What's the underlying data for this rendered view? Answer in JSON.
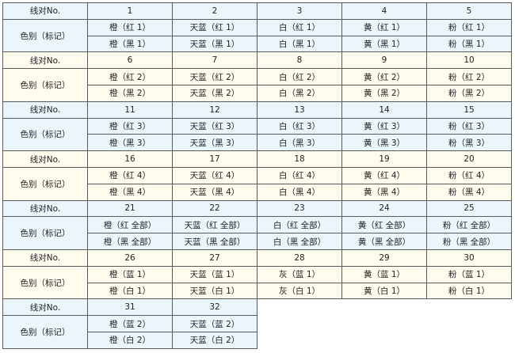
{
  "labels": {
    "pair_no": "线对No.",
    "color": "色别（标记）"
  },
  "colors": {
    "blue_bg": "#eaf5fd",
    "cream_bg": "#fefcec",
    "border": "#5a5a5a"
  },
  "groups": [
    {
      "nos": [
        "1",
        "2",
        "3",
        "4",
        "5"
      ],
      "row1": [
        "橙（红 1）",
        "天蓝（红 1）",
        "白（红 1）",
        "黄（红 1）",
        "粉（红 1）"
      ],
      "row2": [
        "橙（黑 1）",
        "天蓝（黑 1）",
        "白（黑 1）",
        "黄（黑 1）",
        "粉（黑 1）"
      ]
    },
    {
      "nos": [
        "6",
        "7",
        "8",
        "9",
        "10"
      ],
      "row1": [
        "橙（红 2）",
        "天蓝（红 2）",
        "白（红 2）",
        "黄（红 2）",
        "粉（红 2）"
      ],
      "row2": [
        "橙（黑 2）",
        "天蓝（黑 2）",
        "白（黑 2）",
        "黄（黑 2）",
        "粉（黑 2）"
      ]
    },
    {
      "nos": [
        "11",
        "12",
        "13",
        "14",
        "15"
      ],
      "row1": [
        "橙（红 3）",
        "天蓝（红 3）",
        "白（红 3）",
        "黄（红 3）",
        "粉（红 3）"
      ],
      "row2": [
        "橙（黑 3）",
        "天蓝（黑 3）",
        "白（黑 3）",
        "黄（黑 3）",
        "粉（黑 3）"
      ]
    },
    {
      "nos": [
        "16",
        "17",
        "18",
        "19",
        "20"
      ],
      "row1": [
        "橙（红 4）",
        "天蓝（红 4）",
        "白（红 4）",
        "黄（红 4）",
        "粉（红 4）"
      ],
      "row2": [
        "橙（黑 4）",
        "天蓝（黑 4）",
        "白（黑 4）",
        "黄（黑 4）",
        "粉（黑 4）"
      ]
    },
    {
      "nos": [
        "21",
        "22",
        "23",
        "24",
        "25"
      ],
      "row1": [
        "橙（红 全部）",
        "天蓝（红 全部）",
        "白（红 全部）",
        "黄（红 全部）",
        "粉（红 全部）"
      ],
      "row2": [
        "橙（黑 全部）",
        "天蓝（黑 全部）",
        "白（黑 全部）",
        "黄（黑 全部）",
        "粉（黑 全部）"
      ]
    },
    {
      "nos": [
        "26",
        "27",
        "28",
        "29",
        "30"
      ],
      "row1": [
        "橙（蓝 1）",
        "天蓝（蓝 1）",
        "灰（蓝 1）",
        "黄（蓝 1）",
        "粉（蓝 1）"
      ],
      "row2": [
        "橙（白 1）",
        "天蓝（白 1）",
        "灰（白 1）",
        "黄（白 1）",
        "粉（白 1）"
      ]
    },
    {
      "nos": [
        "31",
        "32"
      ],
      "row1": [
        "橙（蓝 2）",
        "天蓝（蓝 2）"
      ],
      "row2": [
        "橙（白 2）",
        "天蓝（白 2）"
      ]
    }
  ]
}
